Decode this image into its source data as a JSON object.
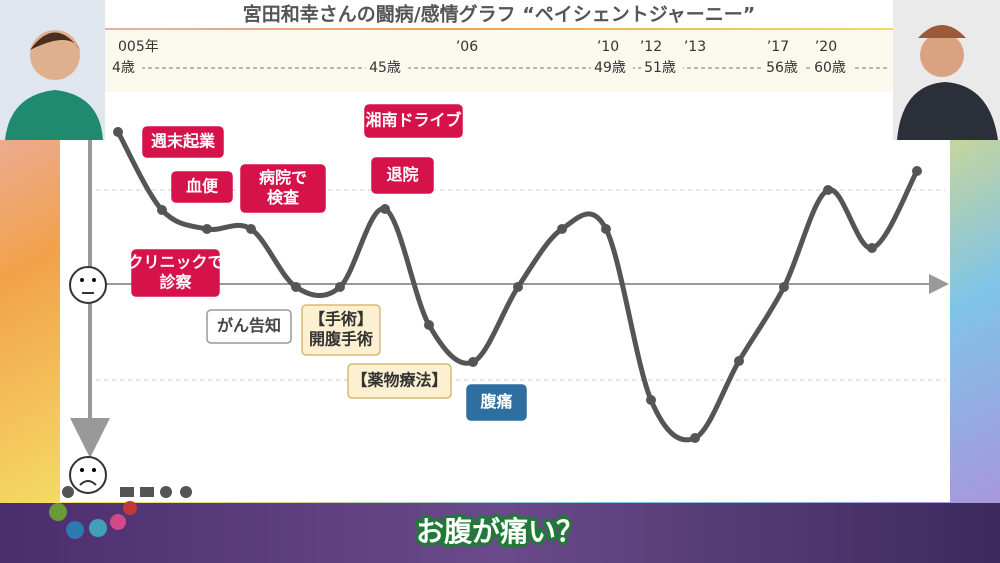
{
  "header": {
    "title": "宮田和幸さんの闘病/感情グラフ “ペイシェントジャーニー”"
  },
  "timeline": {
    "years": [
      "005年",
      "’06",
      "’10",
      "’12",
      "’13",
      "’17",
      "’20"
    ],
    "ages": [
      "4歳",
      "45歳",
      "49歳",
      "51歳",
      "56歳",
      "60歳"
    ]
  },
  "annotations": [
    {
      "lines": [
        "週末起業"
      ]
    },
    {
      "lines": [
        "血便"
      ]
    },
    {
      "lines": [
        "病院で",
        "検査"
      ]
    },
    {
      "lines": [
        "湘南ドライブ"
      ]
    },
    {
      "lines": [
        "退院"
      ]
    },
    {
      "lines": [
        "クリニックで",
        "診察"
      ]
    },
    {
      "lines": [
        "がん告知"
      ]
    },
    {
      "lines": [
        "【手術】",
        "開腹手術"
      ]
    },
    {
      "lines": [
        "【薬物療法】"
      ]
    },
    {
      "lines": [
        "腹痛"
      ]
    }
  ],
  "subtitle": "お腹が痛い？"
}
